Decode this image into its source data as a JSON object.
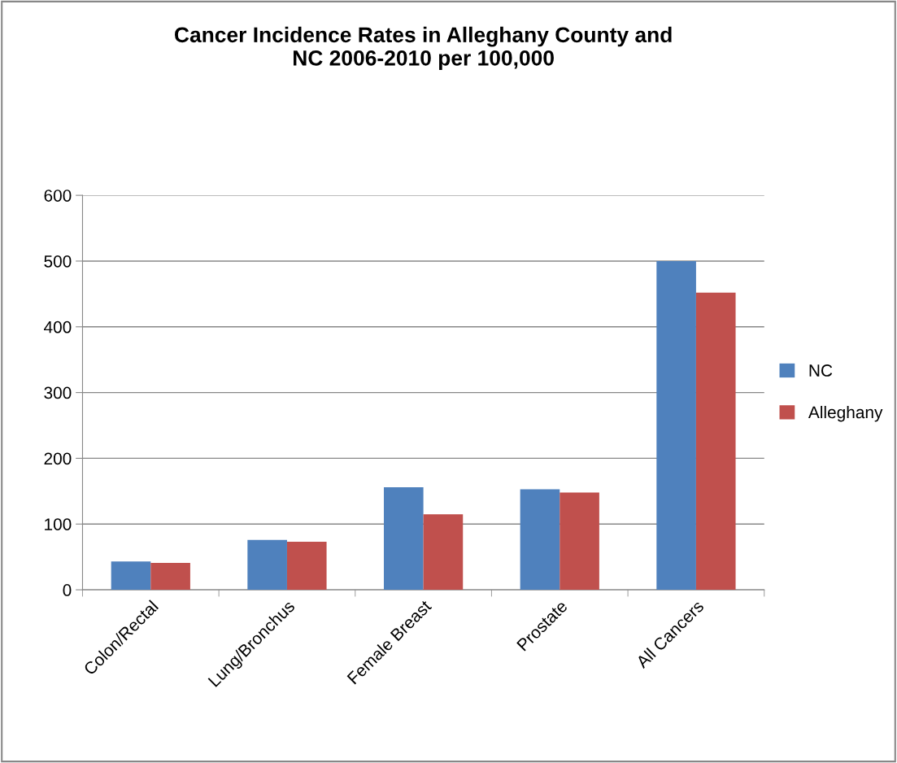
{
  "chart_data": {
    "type": "bar",
    "title": "Cancer Incidence Rates in Alleghany County and\nNC 2006-2010 per 100,000",
    "categories": [
      "Colon/Rectal",
      "Lung/Bronchus",
      "Female Breast",
      "Prostate",
      "All Cancers"
    ],
    "series": [
      {
        "name": "NC",
        "color": "#4f81bd",
        "values": [
          43,
          76,
          156,
          153,
          500
        ]
      },
      {
        "name": "Alleghany",
        "color": "#c0504d",
        "values": [
          41,
          73,
          115,
          148,
          452
        ]
      }
    ],
    "ylim": [
      0,
      600
    ],
    "yticks": [
      0,
      100,
      200,
      300,
      400,
      500,
      600
    ],
    "grid": "y",
    "legend": "right"
  }
}
